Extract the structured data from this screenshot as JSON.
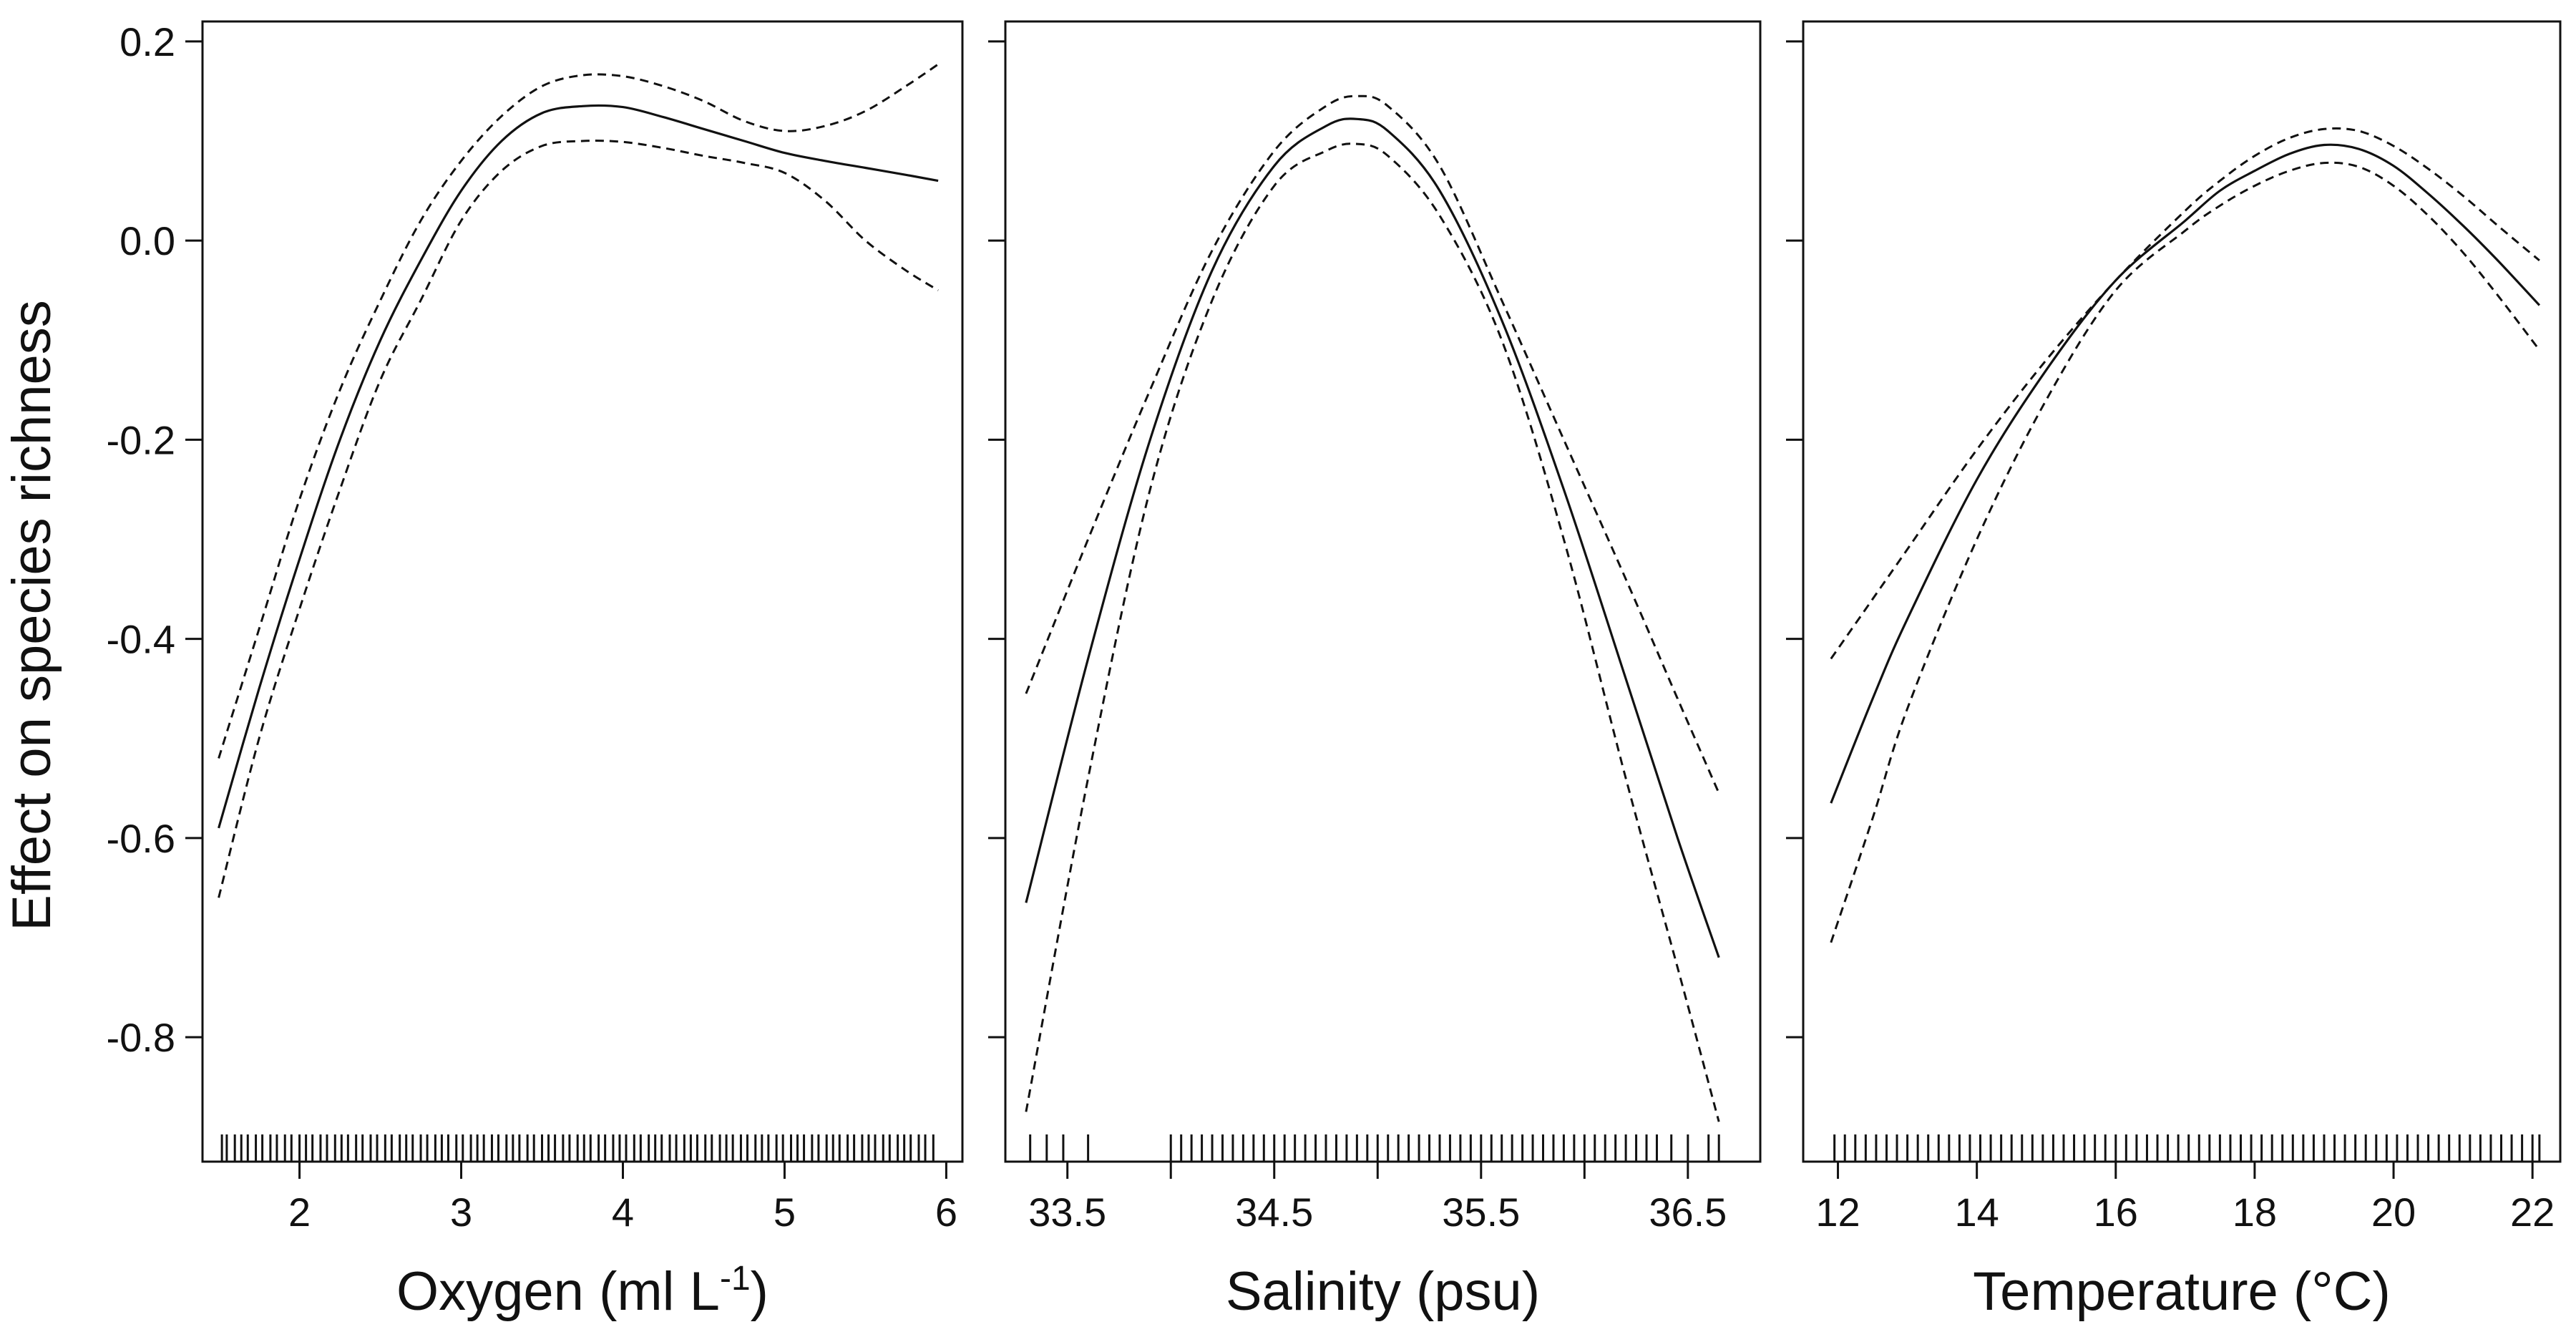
{
  "chart_data": [
    {
      "type": "line",
      "panel": "oxygen",
      "xlabel": "Oxygen (ml L",
      "xlabel_sup": "-1",
      "xlabel_end": ")",
      "ylabel": "Effect on species richness",
      "xlim": [
        1.4,
        6.1
      ],
      "ylim": [
        -0.925,
        0.22
      ],
      "xticks": [
        2,
        3,
        4,
        5,
        6
      ],
      "xtick_labels": [
        "2",
        "3",
        "4",
        "5",
        "6"
      ],
      "yticks": [
        0.2,
        0.0,
        -0.2,
        -0.4,
        -0.6,
        -0.8
      ],
      "ytick_labels": [
        "0.2",
        "0.0",
        "-0.2",
        "-0.4",
        "-0.6",
        "-0.8"
      ],
      "x": [
        1.5,
        1.75,
        2.0,
        2.25,
        2.5,
        2.75,
        3.0,
        3.25,
        3.5,
        3.75,
        4.0,
        4.25,
        4.5,
        4.75,
        5.0,
        5.25,
        5.5,
        5.75,
        5.95
      ],
      "series": [
        {
          "name": "upper 95% CI",
          "style": "dashed",
          "values": [
            -0.52,
            -0.39,
            -0.26,
            -0.15,
            -0.06,
            0.02,
            0.08,
            0.125,
            0.155,
            0.166,
            0.165,
            0.155,
            0.14,
            0.12,
            0.11,
            0.115,
            0.13,
            0.155,
            0.177
          ]
        },
        {
          "name": "fitted effect",
          "style": "solid",
          "values": [
            -0.59,
            -0.45,
            -0.32,
            -0.2,
            -0.1,
            -0.02,
            0.05,
            0.1,
            0.128,
            0.135,
            0.134,
            0.124,
            0.112,
            0.1,
            0.088,
            0.08,
            0.073,
            0.066,
            0.06
          ]
        },
        {
          "name": "lower 95% CI",
          "style": "dashed",
          "values": [
            -0.66,
            -0.5,
            -0.37,
            -0.25,
            -0.14,
            -0.06,
            0.02,
            0.07,
            0.095,
            0.1,
            0.099,
            0.093,
            0.085,
            0.078,
            0.068,
            0.04,
            0.0,
            -0.03,
            -0.05
          ]
        }
      ],
      "rug": [
        1.52,
        1.55,
        1.6,
        1.64,
        1.68,
        1.73,
        1.77,
        1.82,
        1.86,
        1.91,
        1.95,
        2.0,
        2.04,
        2.08,
        2.13,
        2.17,
        2.22,
        2.26,
        2.3,
        2.35,
        2.39,
        2.44,
        2.48,
        2.53,
        2.57,
        2.62,
        2.66,
        2.7,
        2.75,
        2.79,
        2.84,
        2.88,
        2.92,
        2.97,
        3.01,
        3.06,
        3.1,
        3.14,
        3.19,
        3.23,
        3.28,
        3.32,
        3.36,
        3.41,
        3.45,
        3.5,
        3.54,
        3.58,
        3.63,
        3.67,
        3.72,
        3.76,
        3.8,
        3.85,
        3.89,
        3.94,
        3.98,
        4.02,
        4.07,
        4.11,
        4.16,
        4.2,
        4.24,
        4.29,
        4.33,
        4.38,
        4.42,
        4.46,
        4.51,
        4.55,
        4.6,
        4.64,
        4.68,
        4.73,
        4.77,
        4.82,
        4.86,
        4.9,
        4.95,
        4.99,
        5.04,
        5.08,
        5.12,
        5.17,
        5.21,
        5.26,
        5.3,
        5.34,
        5.39,
        5.43,
        5.48,
        5.52,
        5.56,
        5.61,
        5.65,
        5.7,
        5.74,
        5.78,
        5.83,
        5.87,
        5.92
      ]
    },
    {
      "type": "line",
      "panel": "salinity",
      "xlabel": "Salinity (psu)",
      "ylabel": "Effect on species richness",
      "xlim": [
        33.2,
        36.85
      ],
      "ylim": [
        -0.925,
        0.22
      ],
      "xticks": [
        33.5,
        34.0,
        34.5,
        35.0,
        35.5,
        36.0,
        36.5
      ],
      "xtick_labels": [
        "33.5",
        "",
        "34.5",
        "",
        "35.5",
        "",
        "36.5"
      ],
      "yticks": [
        0.2,
        0.0,
        -0.2,
        -0.4,
        -0.6,
        -0.8
      ],
      "ytick_labels": [
        "",
        "",
        "",
        "",
        "",
        ""
      ],
      "x": [
        33.3,
        33.6,
        33.9,
        34.2,
        34.5,
        34.75,
        34.9,
        35.05,
        35.3,
        35.6,
        35.9,
        36.2,
        36.45,
        36.65
      ],
      "series": [
        {
          "name": "upper 95% CI",
          "style": "dashed",
          "values": [
            -0.455,
            -0.3,
            -0.15,
            -0.01,
            0.09,
            0.135,
            0.145,
            0.135,
            0.075,
            -0.06,
            -0.2,
            -0.34,
            -0.46,
            -0.555
          ]
        },
        {
          "name": "fitted effect",
          "style": "solid",
          "values": [
            -0.665,
            -0.42,
            -0.2,
            -0.03,
            0.075,
            0.115,
            0.122,
            0.11,
            0.05,
            -0.08,
            -0.25,
            -0.44,
            -0.6,
            -0.72
          ]
        },
        {
          "name": "lower 95% CI",
          "style": "dashed",
          "values": [
            -0.875,
            -0.54,
            -0.25,
            -0.06,
            0.055,
            0.09,
            0.097,
            0.085,
            0.025,
            -0.1,
            -0.3,
            -0.54,
            -0.73,
            -0.885
          ]
        }
      ],
      "rug": [
        33.32,
        33.4,
        33.48,
        33.6,
        34.0,
        34.05,
        34.1,
        34.15,
        34.2,
        34.25,
        34.3,
        34.35,
        34.4,
        34.45,
        34.5,
        34.55,
        34.6,
        34.65,
        34.7,
        34.75,
        34.8,
        34.85,
        34.9,
        34.95,
        35.0,
        35.05,
        35.1,
        35.15,
        35.2,
        35.25,
        35.3,
        35.35,
        35.4,
        35.45,
        35.5,
        35.55,
        35.6,
        35.65,
        35.7,
        35.75,
        35.8,
        35.85,
        35.9,
        35.95,
        36.0,
        36.05,
        36.1,
        36.15,
        36.2,
        36.25,
        36.3,
        36.35,
        36.42,
        36.5,
        36.6,
        36.65
      ]
    },
    {
      "type": "line",
      "panel": "temperature",
      "xlabel": "Temperature (°C)",
      "ylabel": "Effect on species richness",
      "xlim": [
        11.5,
        22.4
      ],
      "ylim": [
        -0.925,
        0.22
      ],
      "xticks": [
        12,
        14,
        16,
        18,
        20,
        22
      ],
      "xtick_labels": [
        "12",
        "14",
        "16",
        "18",
        "20",
        "22"
      ],
      "yticks": [
        0.2,
        0.0,
        -0.2,
        -0.4,
        -0.6,
        -0.8
      ],
      "ytick_labels": [
        "",
        "",
        "",
        "",
        "",
        ""
      ],
      "x": [
        11.9,
        12.5,
        13.0,
        14.0,
        15.0,
        16.0,
        17.0,
        17.5,
        18.0,
        18.5,
        19.0,
        19.5,
        20.0,
        20.5,
        21.0,
        21.5,
        22.1
      ],
      "series": [
        {
          "name": "upper 95% CI",
          "style": "dashed",
          "values": [
            -0.42,
            -0.36,
            -0.31,
            -0.21,
            -0.12,
            -0.04,
            0.03,
            0.06,
            0.085,
            0.103,
            0.112,
            0.11,
            0.095,
            0.072,
            0.045,
            0.015,
            -0.02
          ]
        },
        {
          "name": "fitted effect",
          "style": "solid",
          "values": [
            -0.565,
            -0.46,
            -0.38,
            -0.24,
            -0.13,
            -0.04,
            0.02,
            0.05,
            0.07,
            0.087,
            0.096,
            0.092,
            0.075,
            0.047,
            0.015,
            -0.02,
            -0.065
          ]
        },
        {
          "name": "lower 95% CI",
          "style": "dashed",
          "values": [
            -0.705,
            -0.58,
            -0.47,
            -0.3,
            -0.16,
            -0.05,
            0.01,
            0.035,
            0.055,
            0.07,
            0.078,
            0.074,
            0.055,
            0.025,
            -0.012,
            -0.055,
            -0.11
          ]
        }
      ],
      "rug": [
        11.95,
        12.1,
        12.25,
        12.4,
        12.55,
        12.7,
        12.85,
        13.0,
        13.15,
        13.3,
        13.45,
        13.6,
        13.75,
        13.9,
        14.05,
        14.2,
        14.35,
        14.5,
        14.65,
        14.8,
        14.95,
        15.1,
        15.25,
        15.4,
        15.55,
        15.7,
        15.85,
        16.0,
        16.15,
        16.3,
        16.45,
        16.6,
        16.75,
        16.9,
        17.05,
        17.2,
        17.35,
        17.5,
        17.65,
        17.8,
        17.95,
        18.1,
        18.25,
        18.4,
        18.55,
        18.7,
        18.85,
        19.0,
        19.15,
        19.3,
        19.45,
        19.6,
        19.75,
        19.9,
        20.05,
        20.2,
        20.35,
        20.5,
        20.65,
        20.8,
        20.95,
        21.1,
        21.25,
        21.4,
        21.55,
        21.7,
        21.85,
        22.0,
        22.1
      ]
    }
  ]
}
